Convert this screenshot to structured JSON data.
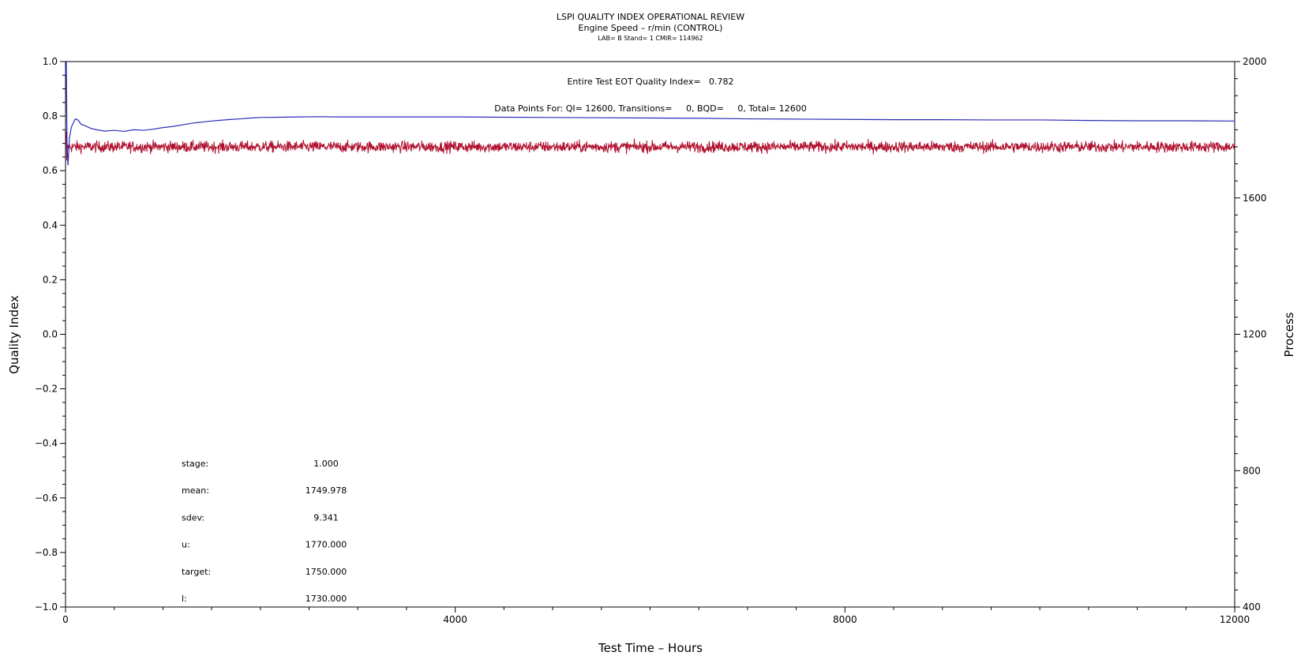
{
  "chart_data": {
    "type": "line",
    "title": "LSPI QUALITY INDEX OPERATIONAL REVIEW",
    "subtitle": "Engine Speed – r/min (CONTROL)",
    "subtitle2": "LAB= B Stand= 1 CMIR= 114962",
    "annotations": {
      "quality_index": "Entire Test EOT Quality Index=   0.782",
      "data_points": "Data Points For: QI= 12600, Transitions=     0, BQD=     0, Total= 12600"
    },
    "xlabel": "Test Time – Hours",
    "ylabel": "Quality Index",
    "y2label": "Process",
    "xlim": [
      0,
      12000
    ],
    "ylim": [
      -1.0,
      1.0
    ],
    "y2lim": [
      400,
      2000
    ],
    "x_ticks": [
      0,
      4000,
      8000,
      12000
    ],
    "x_tick_labels": [
      "0",
      "4000",
      "8000",
      "12000"
    ],
    "y_ticks": [
      1.0,
      0.8,
      0.6,
      0.4,
      0.2,
      0.0,
      -0.2,
      -0.4,
      -0.6,
      -0.8,
      -1.0
    ],
    "y_tick_labels": [
      "1.0",
      "0.8",
      "0.6",
      "0.4",
      "0.2",
      "0.0",
      "−0.2",
      "−0.4",
      "−0.6",
      "−0.8",
      "−1.0"
    ],
    "y2_ticks": [
      2000,
      1600,
      1200,
      800,
      400
    ],
    "y2_tick_labels": [
      "2000",
      "1600",
      "1200",
      "800",
      "400"
    ],
    "grid": false,
    "series": [
      {
        "axis": "left",
        "color": "#2b2bb8",
        "x": [
          0,
          8,
          15,
          25,
          40,
          60,
          80,
          100,
          130,
          160,
          200,
          260,
          320,
          400,
          500,
          600,
          700,
          800,
          900,
          1000,
          1100,
          1200,
          1300,
          1400,
          1500,
          1600,
          1700,
          1800,
          1900,
          2000,
          2200,
          2400,
          2600,
          2800,
          3000,
          3500,
          4000,
          4500,
          5000,
          5500,
          6000,
          6500,
          7000,
          7500,
          8000,
          8500,
          9000,
          9500,
          10000,
          10500,
          11000,
          11500,
          12000
        ],
        "y": [
          0.95,
          1.0,
          0.7,
          0.62,
          0.72,
          0.76,
          0.775,
          0.79,
          0.785,
          0.77,
          0.765,
          0.755,
          0.75,
          0.745,
          0.748,
          0.744,
          0.75,
          0.748,
          0.752,
          0.758,
          0.762,
          0.768,
          0.774,
          0.778,
          0.782,
          0.785,
          0.788,
          0.79,
          0.793,
          0.795,
          0.796,
          0.797,
          0.798,
          0.797,
          0.797,
          0.797,
          0.797,
          0.796,
          0.795,
          0.794,
          0.793,
          0.792,
          0.79,
          0.789,
          0.788,
          0.787,
          0.787,
          0.786,
          0.786,
          0.784,
          0.783,
          0.783,
          0.782
        ]
      },
      {
        "axis": "right",
        "color": "#b0102e",
        "mean": 1749.978,
        "sdev": 9.341,
        "x_range": [
          0,
          12000
        ],
        "n_points": 12600
      }
    ],
    "stats": [
      {
        "label": "stage:",
        "value": "1.000"
      },
      {
        "label": "mean:",
        "value": "1749.978"
      },
      {
        "label": "sdev:",
        "value": "9.341"
      },
      {
        "label": "u:",
        "value": "1770.000"
      },
      {
        "label": "target:",
        "value": "1750.000"
      },
      {
        "label": "l:",
        "value": "1730.000"
      }
    ]
  }
}
